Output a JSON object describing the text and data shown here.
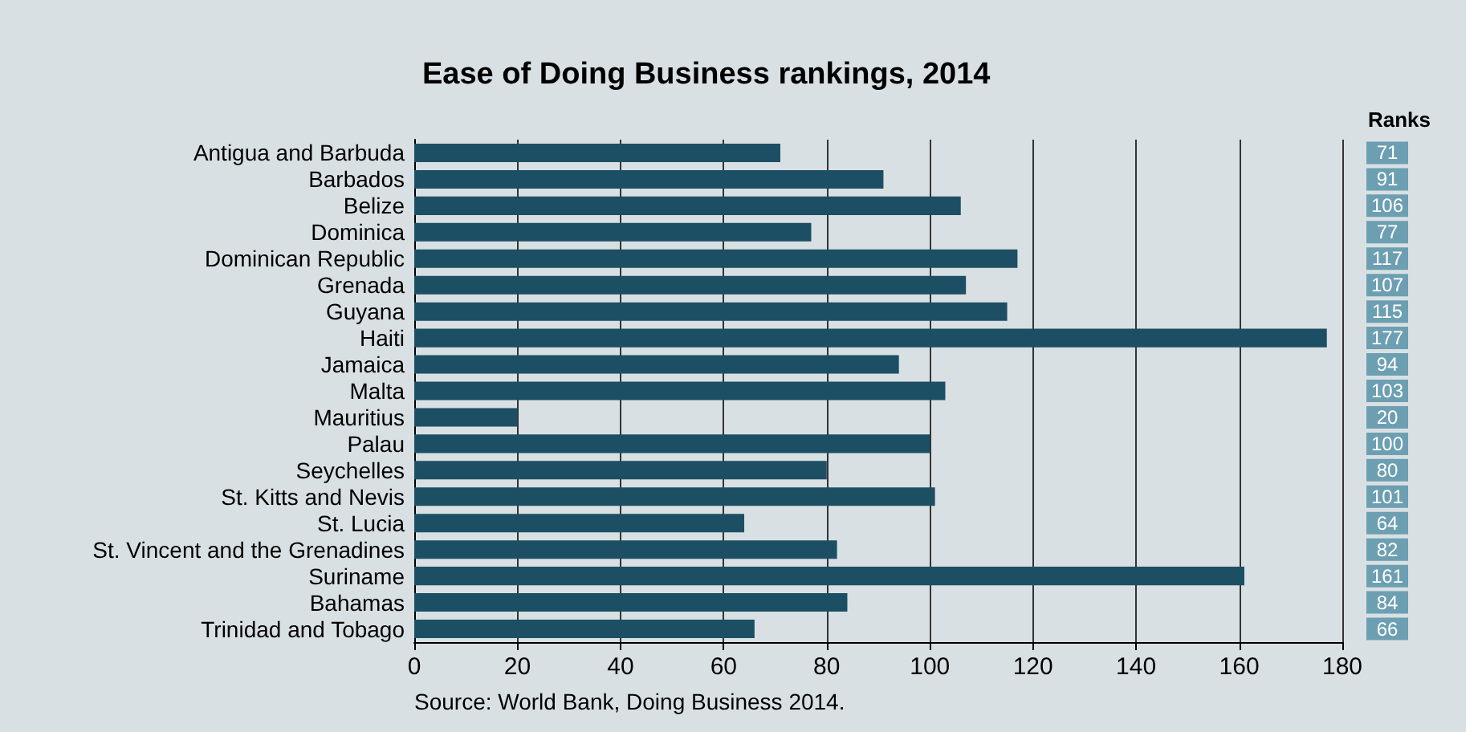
{
  "chart_data": {
    "type": "bar",
    "orientation": "horizontal",
    "title": "Ease of Doing Business rankings, 2014",
    "categories": [
      "Antigua and Barbuda",
      "Barbados",
      "Belize",
      "Dominica",
      "Dominican Republic",
      "Grenada",
      "Guyana",
      "Haiti",
      "Jamaica",
      "Malta",
      "Mauritius",
      "Palau",
      "Seychelles",
      "St. Kitts and Nevis",
      "St. Lucia",
      "St. Vincent and the Grenadines",
      "Suriname",
      "Bahamas",
      "Trinidad and Tobago"
    ],
    "values": [
      71,
      91,
      106,
      77,
      117,
      107,
      115,
      177,
      94,
      103,
      20,
      100,
      80,
      101,
      64,
      82,
      161,
      84,
      66
    ],
    "color": "#1d4f64",
    "xlim": [
      0,
      180
    ],
    "xticks": [
      0,
      20,
      40,
      60,
      80,
      100,
      120,
      140,
      160,
      180
    ],
    "grid": "x",
    "data_labels": true,
    "annotations": [
      "Ranks",
      "Source: World Bank, Doing Business 2014."
    ]
  }
}
